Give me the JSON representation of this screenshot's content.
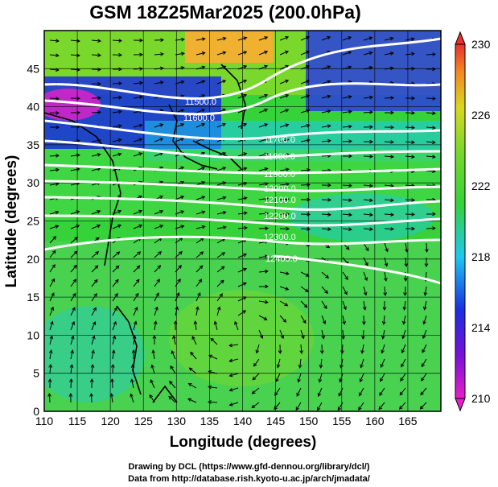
{
  "title": "GSM 18Z25Mar2025 (200.0hPa)",
  "map": {
    "xlabel": "Longitude (degrees)",
    "ylabel": "Latitude  (degrees)",
    "lon_range": [
      110,
      170
    ],
    "lat_range": [
      0,
      50
    ],
    "lon_ticks": [
      "110",
      "115",
      "120",
      "125",
      "130",
      "135",
      "140",
      "145",
      "150",
      "155",
      "160",
      "165"
    ],
    "lat_ticks": [
      "0",
      "5",
      "10",
      "15",
      "20",
      "25",
      "30",
      "35",
      "40",
      "45"
    ],
    "field": "temperature shading with streamlines and geopotential height contours",
    "contour_labels": [
      "11500.0",
      "11600.0",
      "11700.0",
      "11800.0",
      "11900.0",
      "12000.0",
      "12100.0",
      "12200.0",
      "12300.0",
      "12400.0"
    ],
    "colors": {
      "magenta": "#e81fc8",
      "blue": "#1a2ee0",
      "cyan": "#1ec8f0",
      "green": "#35d23a",
      "yellow_green": "#a8e020",
      "orange": "#f4b02a",
      "red": "#e83030"
    }
  },
  "colorbar": {
    "tick_labels": [
      "210",
      "214",
      "218",
      "222",
      "226",
      "230"
    ],
    "min": 210,
    "max": 230
  },
  "credits": {
    "line1": "Drawing by DCL (https://www.gfd-dennou.org/library/dcl/)",
    "line2": "Data from http://database.rish.kyoto-u.ac.jp/arch/jmadata/"
  }
}
